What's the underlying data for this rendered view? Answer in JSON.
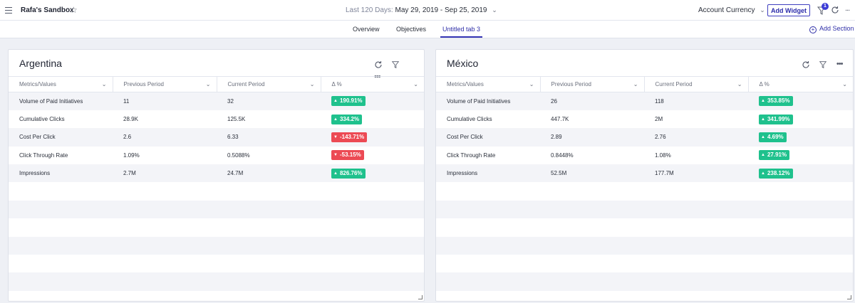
{
  "header": {
    "menu_icon": "hamburger-icon",
    "title": "Rafa's Sandbox",
    "star_icon": "star-icon",
    "date_prefix": "Last 120 Days:",
    "date_value": "May 29, 2019 - Sep 25, 2019",
    "currency_label": "Account Currency",
    "add_widget_label": "Add Widget",
    "filter_badge": "1",
    "more_icon": "..."
  },
  "tabs": [
    {
      "label": "Overview"
    },
    {
      "label": "Objectives"
    },
    {
      "label": "Untitled tab 3",
      "active": true
    }
  ],
  "add_section_label": "Add Section",
  "widgets": [
    {
      "title": "Argentina",
      "columns": [
        "Metrics/Values",
        "Previous Period",
        "Current Period",
        "Δ %"
      ],
      "rows": [
        {
          "metric": "Volume of Paid Initiatives",
          "previous": "11",
          "current": "32",
          "delta": "190.91%",
          "dir": "up"
        },
        {
          "metric": "Cumulative Clicks",
          "previous": "28.9K",
          "current": "125.5K",
          "delta": "334.2%",
          "dir": "up"
        },
        {
          "metric": "Cost Per Click",
          "previous": "2.6",
          "current": "6.33",
          "delta": "-143.71%",
          "dir": "down"
        },
        {
          "metric": "Click Through Rate",
          "previous": "1.09%",
          "current": "0.5088%",
          "delta": "-53.15%",
          "dir": "down"
        },
        {
          "metric": "Impressions",
          "previous": "2.7M",
          "current": "24.7M",
          "delta": "826.76%",
          "dir": "up"
        }
      ]
    },
    {
      "title": "México",
      "columns": [
        "Metrics/Values",
        "Previous Period",
        "Current Period",
        "Δ %"
      ],
      "rows": [
        {
          "metric": "Volume of Paid Initiatives",
          "previous": "26",
          "current": "118",
          "delta": "353.85%",
          "dir": "up"
        },
        {
          "metric": "Cumulative Clicks",
          "previous": "447.7K",
          "current": "2M",
          "delta": "341.99%",
          "dir": "up"
        },
        {
          "metric": "Cost Per Click",
          "previous": "2.89",
          "current": "2.76",
          "delta": "4.69%",
          "dir": "up"
        },
        {
          "metric": "Click Through Rate",
          "previous": "0.8448%",
          "current": "1.08%",
          "delta": "27.91%",
          "dir": "up"
        },
        {
          "metric": "Impressions",
          "previous": "52.5M",
          "current": "177.7M",
          "delta": "238.12%",
          "dir": "up"
        }
      ]
    }
  ],
  "colors": {
    "accent": "#3434b4",
    "positive": "#1fc18d",
    "negative": "#ec4a54"
  }
}
